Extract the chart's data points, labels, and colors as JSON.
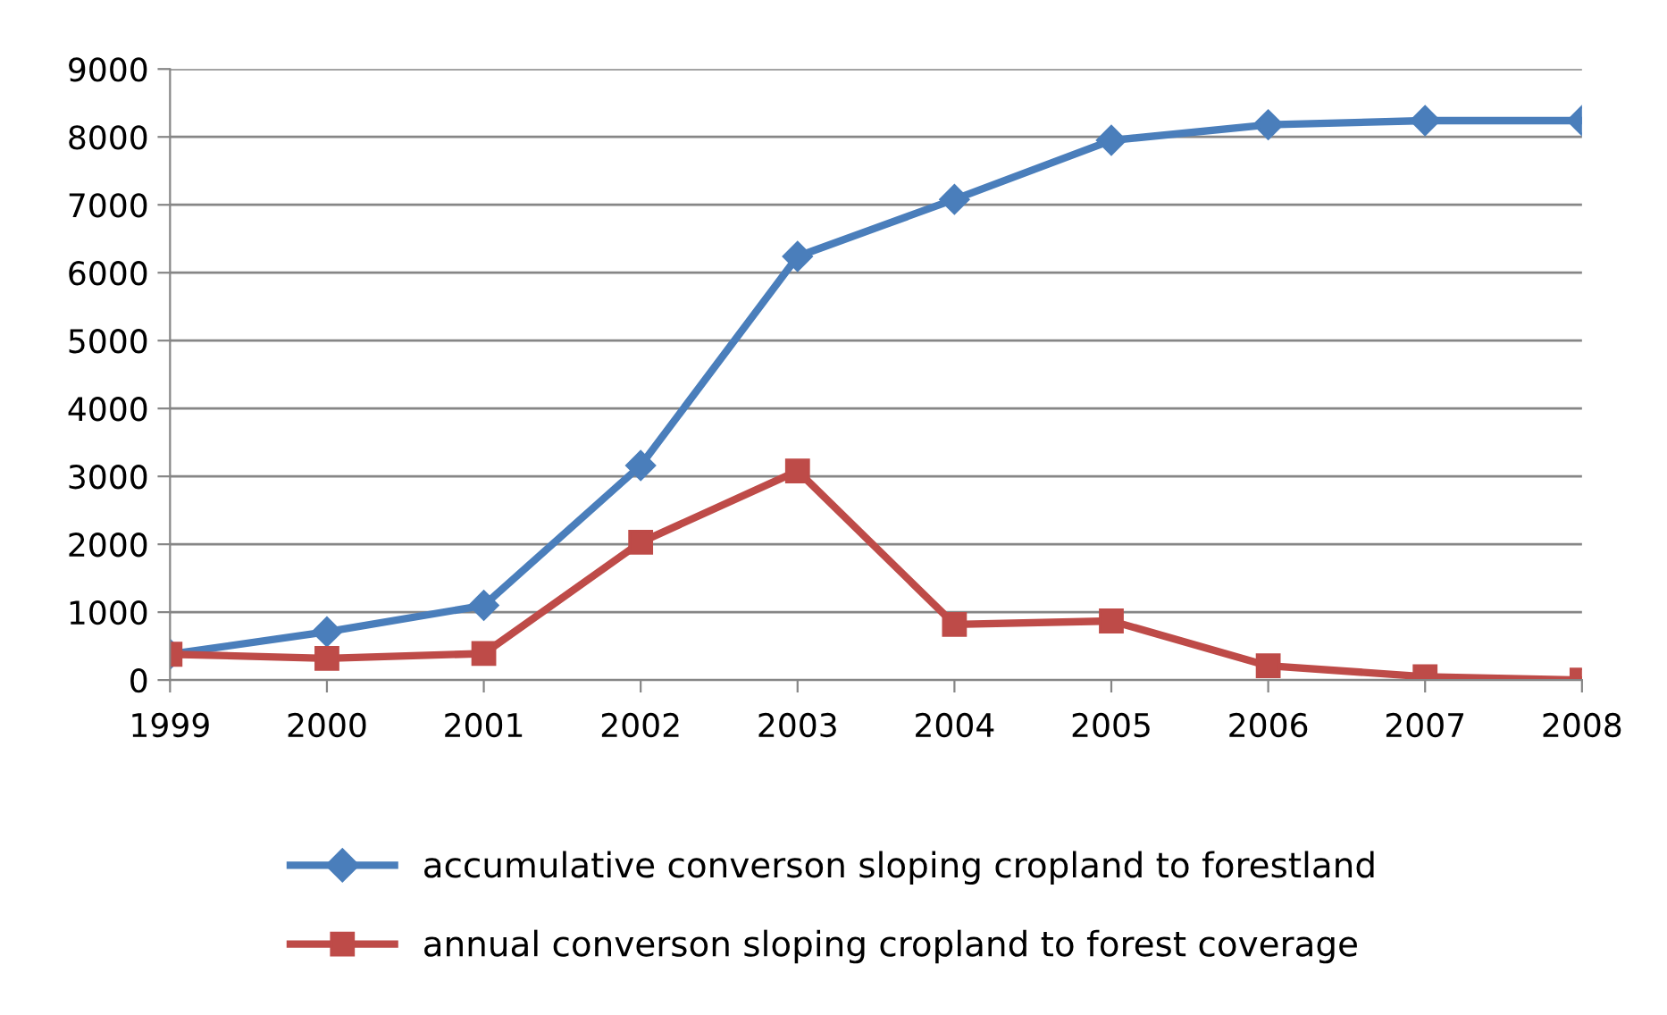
{
  "chart_data": {
    "type": "line",
    "categories": [
      "1999",
      "2000",
      "2001",
      "2002",
      "2003",
      "2004",
      "2005",
      "2006",
      "2007",
      "2008"
    ],
    "series": [
      {
        "name": "accumulative converson sloping cropland to forestland",
        "color": "#4a7ebb",
        "marker": "diamond",
        "values": [
          380,
          710,
          1100,
          3160,
          6240,
          7080,
          7950,
          8180,
          8240,
          8240
        ]
      },
      {
        "name": "annual converson sloping cropland to forest coverage",
        "color": "#be4b48",
        "marker": "square",
        "values": [
          380,
          320,
          390,
          2030,
          3080,
          820,
          870,
          210,
          50,
          0
        ]
      }
    ],
    "ylim": [
      0,
      9000
    ],
    "yticks": [
      0,
      1000,
      2000,
      3000,
      4000,
      5000,
      6000,
      7000,
      8000,
      9000
    ],
    "grid": "y",
    "legend": "bottom",
    "line_style": "solid"
  }
}
